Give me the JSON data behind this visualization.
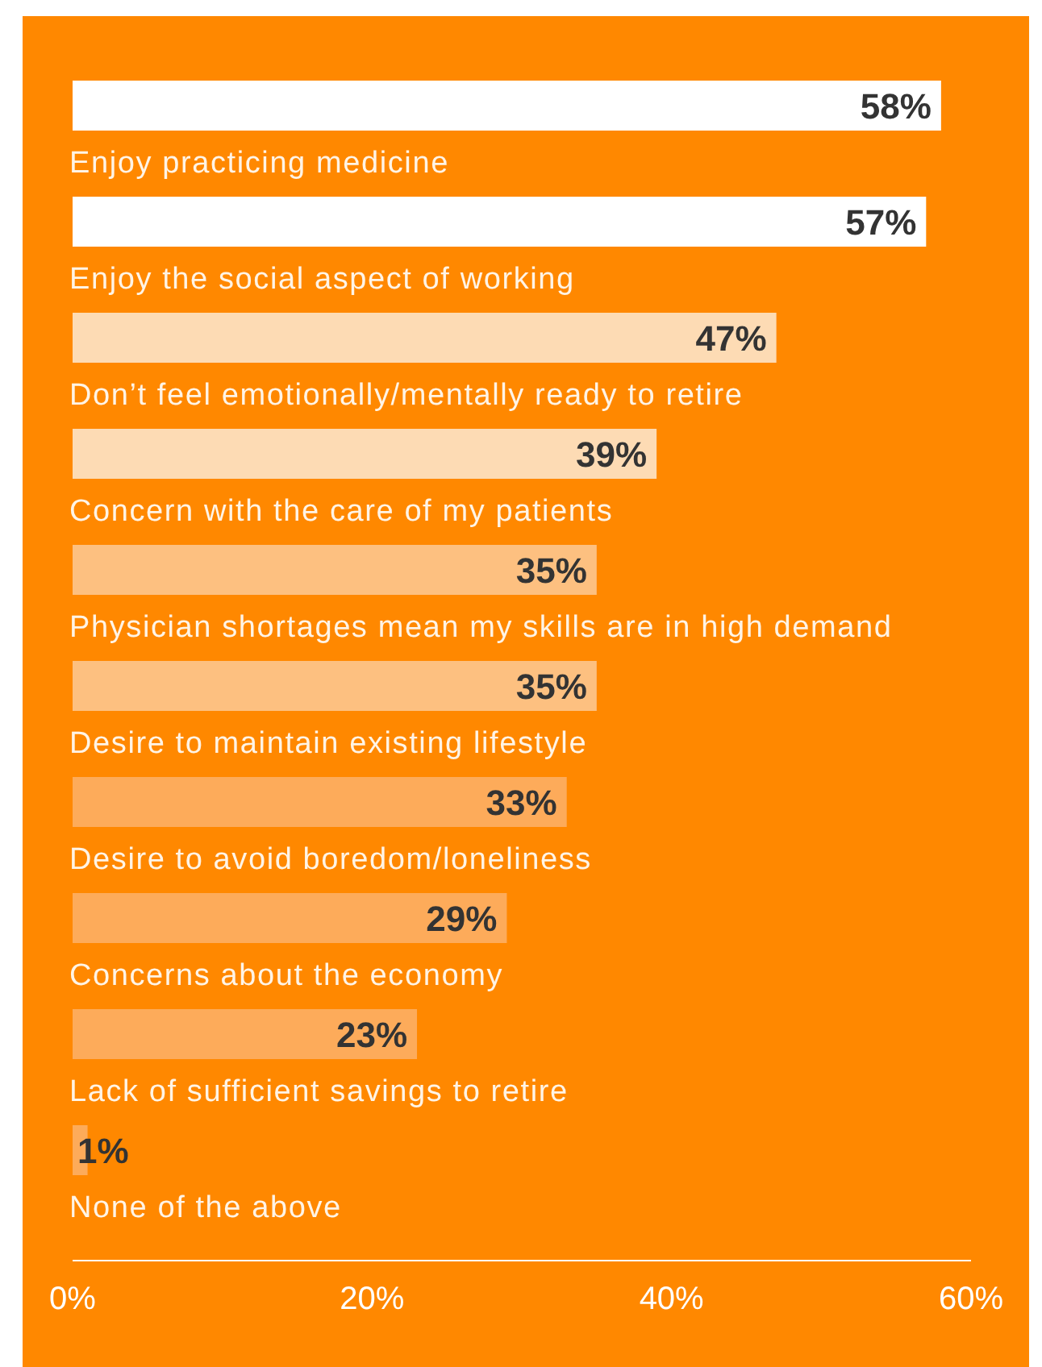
{
  "chart_data": {
    "type": "bar",
    "orientation": "horizontal",
    "categories": [
      "Enjoy practicing medicine",
      "Enjoy the social aspect of working",
      "Don’t feel emotionally/mentally ready to retire",
      "Concern with the care of my patients",
      "Physician shortages mean my skills are in high demand",
      "Desire to maintain existing lifestyle",
      "Desire to avoid boredom/loneliness",
      "Concerns about the economy",
      "Lack of sufficient savings to retire",
      "None of the above"
    ],
    "values": [
      58,
      57,
      47,
      39,
      35,
      35,
      33,
      29,
      23,
      1
    ],
    "value_labels": [
      "58%",
      "57%",
      "47%",
      "39%",
      "35%",
      "35%",
      "33%",
      "29%",
      "23%",
      "1%"
    ],
    "colors": [
      "#ffffff",
      "#ffffff",
      "#fddbb4",
      "#fddbb4",
      "#fdc080",
      "#fdc080",
      "#fdab5a",
      "#fdab5a",
      "#fdab5a",
      "#fdab5a"
    ],
    "xlim": [
      0,
      60
    ],
    "xticks": [
      {
        "value": 0,
        "label": "0%"
      },
      {
        "value": 20,
        "label": "20%"
      },
      {
        "value": 40,
        "label": "40%"
      },
      {
        "value": 60,
        "label": "60%"
      }
    ],
    "grid": false
  }
}
